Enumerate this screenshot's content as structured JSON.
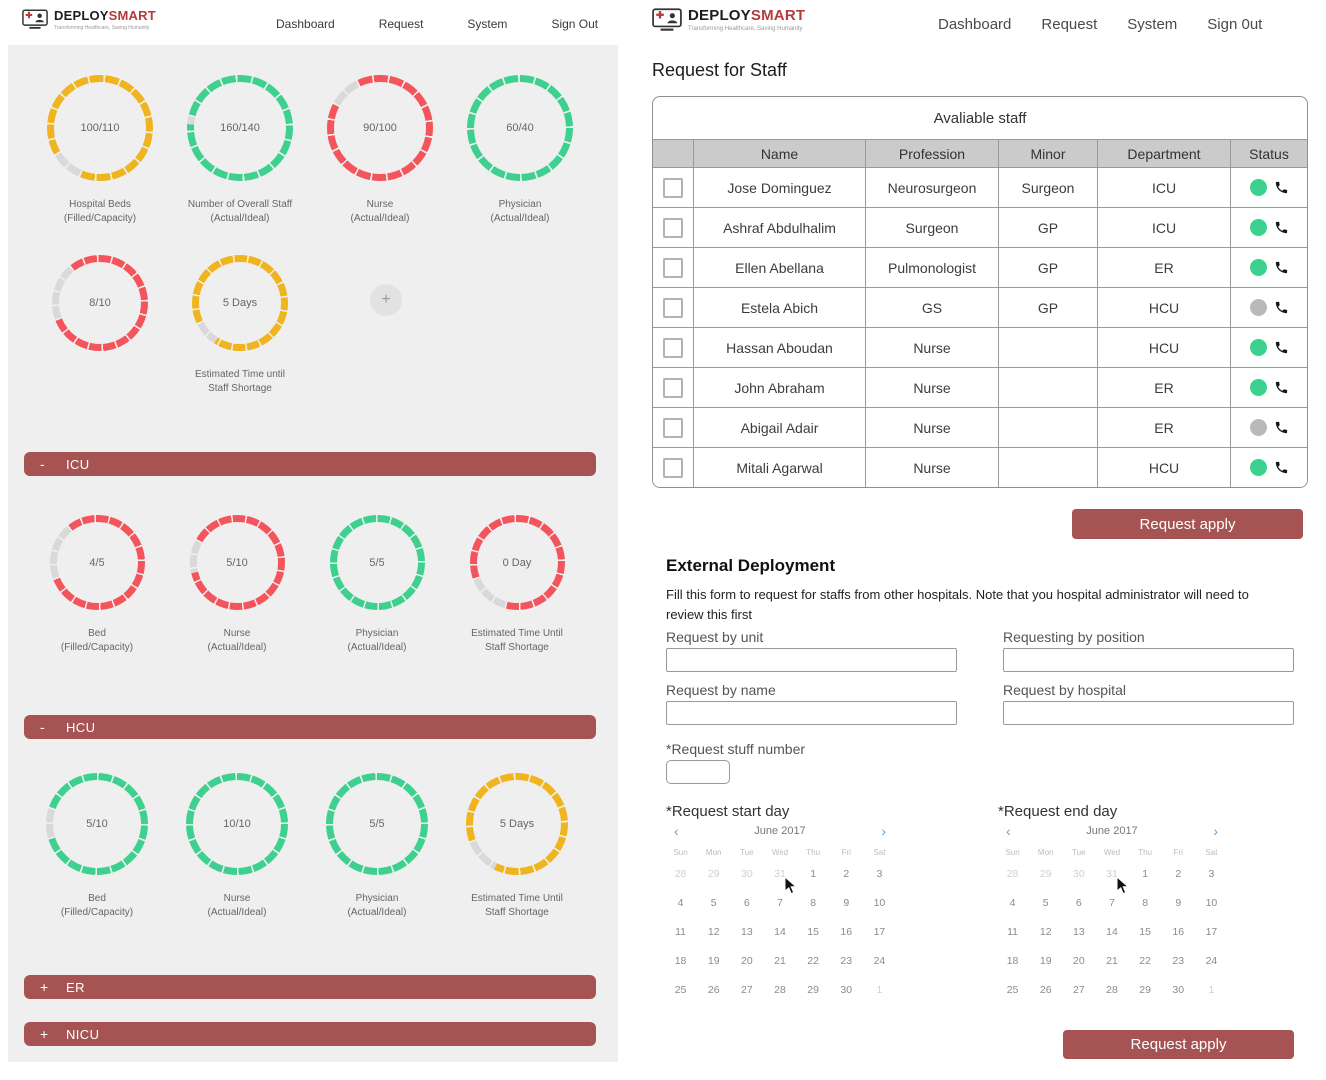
{
  "brand": {
    "primary": "DEPLOY",
    "secondary": "SMART",
    "tagline": "Transforming Healthcare, Saving Humanity"
  },
  "nav_left": {
    "items": [
      "Dashboard",
      "Request",
      "System",
      "Sign Out"
    ]
  },
  "nav_right": {
    "items": [
      "Dashboard",
      "Request",
      "System",
      "Sign 0ut"
    ]
  },
  "icons": {
    "chevron_left": "‹",
    "chevron_right": "›"
  },
  "colors": {
    "maroon": "#a55353",
    "green": "#3ed08e",
    "red": "#f4555c",
    "yellow": "#f0b41e",
    "gray_dot": "#b9b9b9",
    "ring_gap": "#d9d9d9",
    "accent_blue": "#58a0dc"
  },
  "dashboard": {
    "add_button_label": "+",
    "overview_gauges": [
      {
        "value": "100/110",
        "label": "Hospital Beds\n(Filled/Capacity)",
        "color": "#f0b41e",
        "pct": 90,
        "start": 240
      },
      {
        "value": "160/140",
        "label": "Number of Overall Staff\n(Actual/Ideal)",
        "color": "#3ed08e",
        "pct": 97,
        "start": 285
      },
      {
        "value": "90/100",
        "label": "Nurse\n(Actual/Ideal)",
        "color": "#f4555c",
        "pct": 90,
        "start": 335
      },
      {
        "value": "60/40",
        "label": "Physician\n(Actual/Ideal)",
        "color": "#3ed08e",
        "pct": 99.3,
        "start": 0
      }
    ],
    "secondary_gauges": [
      {
        "value": "8/10",
        "label": "",
        "color": "#f4555c",
        "pct": 80,
        "start": 322
      },
      {
        "value": "5 Days",
        "label": "Estimated Time until\nStaff Shortage",
        "color": "#f0b41e",
        "pct": 91,
        "start": 245
      }
    ],
    "sections": [
      {
        "title": "ICU",
        "toggle": "-",
        "gauges": [
          {
            "value": "4/5",
            "label": "Bed\n(Filled/Capacity)",
            "color": "#f4555c",
            "pct": 80,
            "start": 322
          },
          {
            "value": "5/10",
            "label": "Nurse\n(Actual/Ideal)",
            "color": "#f4555c",
            "pct": 88,
            "start": 300
          },
          {
            "value": "5/5",
            "label": "Physician\n(Actual/Ideal)",
            "color": "#3ed08e",
            "pct": 100,
            "start": 0
          },
          {
            "value": "0 Day",
            "label": "Estimated Time Until\nStaff Shortage",
            "color": "#f4555c",
            "pct": 85,
            "start": 250
          }
        ]
      },
      {
        "title": "HCU",
        "toggle": "-",
        "gauges": [
          {
            "value": "5/10",
            "label": "Bed\n(Filled/Capacity)",
            "color": "#3ed08e",
            "pct": 90,
            "start": 290
          },
          {
            "value": "10/10",
            "label": "Nurse\n(Actual/Ideal)",
            "color": "#3ed08e",
            "pct": 100,
            "start": 0
          },
          {
            "value": "5/5",
            "label": "Physician\n(Actual/Ideal)",
            "color": "#3ed08e",
            "pct": 100,
            "start": 0
          },
          {
            "value": "5 Days",
            "label": "Estimated Time Until\nStaff Shortage",
            "color": "#f0b41e",
            "pct": 88,
            "start": 250
          }
        ]
      },
      {
        "title": "ER",
        "toggle": "+"
      },
      {
        "title": "NICU",
        "toggle": "+"
      }
    ]
  },
  "request_page": {
    "title": "Request for Staff",
    "table": {
      "caption": "Avaliable staff",
      "columns": [
        "Name",
        "Profession",
        "Minor",
        "Department",
        "Status"
      ],
      "rows": [
        {
          "name": "Jose Dominguez",
          "profession": "Neurosurgeon",
          "minor": "Surgeon",
          "department": "ICU",
          "status": "available"
        },
        {
          "name": "Ashraf Abdulhalim",
          "profession": "Surgeon",
          "minor": "GP",
          "department": "ICU",
          "status": "available"
        },
        {
          "name": "Ellen Abellana",
          "profession": "Pulmonologist",
          "minor": "GP",
          "department": "ER",
          "status": "available"
        },
        {
          "name": "Estela Abich",
          "profession": "GS",
          "minor": "GP",
          "department": "HCU",
          "status": "unavailable"
        },
        {
          "name": "Hassan Aboudan",
          "profession": "Nurse",
          "minor": "",
          "department": "HCU",
          "status": "available"
        },
        {
          "name": "John Abraham",
          "profession": "Nurse",
          "minor": "",
          "department": "ER",
          "status": "available"
        },
        {
          "name": "Abigail Adair",
          "profession": "Nurse",
          "minor": "",
          "department": "ER",
          "status": "unavailable"
        },
        {
          "name": "Mitali Agarwal",
          "profession": "Nurse",
          "minor": "",
          "department": "HCU",
          "status": "available"
        }
      ],
      "apply_label": "Request apply"
    },
    "external": {
      "heading": "External Deployment",
      "description": "Fill this form to request for staffs from other hospitals. Note that you hospital administrator will need to review this first",
      "fields": {
        "unit_label": "Request by unit",
        "position_label": "Requesting by position",
        "name_label": "Request by name",
        "hospital_label": "Request by hospital",
        "number_label": "*Request stuff number",
        "start_label": "*Request start day",
        "end_label": "*Request end day"
      },
      "apply_label": "Request apply"
    },
    "calendar": {
      "month": "June 2017",
      "weekdays": [
        "Sun",
        "Mon",
        "Tue",
        "Wed",
        "Thu",
        "Fri",
        "Sat"
      ],
      "weeks": [
        [
          {
            "d": "28",
            "m": 1
          },
          {
            "d": "29",
            "m": 1
          },
          {
            "d": "30",
            "m": 1
          },
          {
            "d": "31",
            "m": 1
          },
          {
            "d": "1",
            "m": 0
          },
          {
            "d": "2",
            "m": 0
          },
          {
            "d": "3",
            "m": 0
          }
        ],
        [
          {
            "d": "4",
            "m": 0
          },
          {
            "d": "5",
            "m": 0
          },
          {
            "d": "6",
            "m": 0
          },
          {
            "d": "7",
            "m": 0
          },
          {
            "d": "8",
            "m": 0
          },
          {
            "d": "9",
            "m": 0
          },
          {
            "d": "10",
            "m": 0
          }
        ],
        [
          {
            "d": "11",
            "m": 0
          },
          {
            "d": "12",
            "m": 0
          },
          {
            "d": "13",
            "m": 0
          },
          {
            "d": "14",
            "m": 0
          },
          {
            "d": "15",
            "m": 0
          },
          {
            "d": "16",
            "m": 0
          },
          {
            "d": "17",
            "m": 0
          }
        ],
        [
          {
            "d": "18",
            "m": 0
          },
          {
            "d": "19",
            "m": 0
          },
          {
            "d": "20",
            "m": 0
          },
          {
            "d": "21",
            "m": 0
          },
          {
            "d": "22",
            "m": 0
          },
          {
            "d": "23",
            "m": 0
          },
          {
            "d": "24",
            "m": 0
          }
        ],
        [
          {
            "d": "25",
            "m": 0
          },
          {
            "d": "26",
            "m": 0
          },
          {
            "d": "27",
            "m": 0
          },
          {
            "d": "28",
            "m": 0
          },
          {
            "d": "29",
            "m": 0
          },
          {
            "d": "30",
            "m": 0
          },
          {
            "d": "1",
            "m": 1
          }
        ]
      ]
    }
  }
}
